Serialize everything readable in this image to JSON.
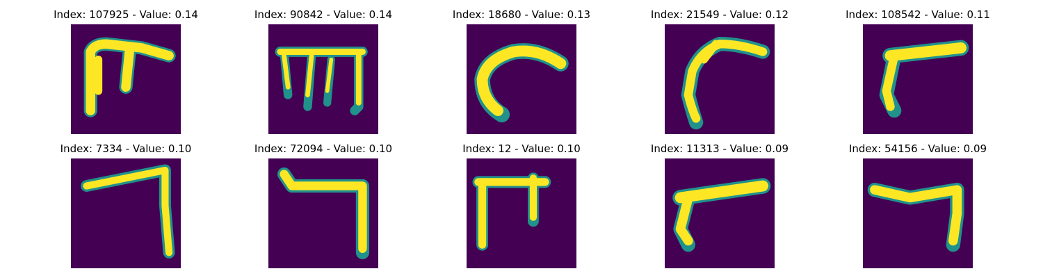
{
  "chart_data": {
    "type": "image-grid",
    "colormap": "viridis",
    "background_color": "#440154",
    "foreground_color": "#fde725",
    "edge_color": "#21918c",
    "items": [
      {
        "index": 107925,
        "value": 0.14,
        "title": "Index: 107925 - Value: 0.14",
        "glyph": "stroke-bracket-stem"
      },
      {
        "index": 90842,
        "value": 0.14,
        "title": "Index: 90842 - Value: 0.14",
        "glyph": "stroke-comb"
      },
      {
        "index": 18680,
        "value": 0.13,
        "title": "Index: 18680 - Value: 0.13",
        "glyph": "stroke-hook-left"
      },
      {
        "index": 21549,
        "value": 0.12,
        "title": "Index: 21549 - Value: 0.12",
        "glyph": "stroke-diagonal-hook"
      },
      {
        "index": 108542,
        "value": 0.11,
        "title": "Index: 108542 - Value: 0.11",
        "glyph": "stroke-bar-left-leg"
      },
      {
        "index": 7334,
        "value": 0.1,
        "title": "Index: 7334 - Value: 0.10",
        "glyph": "stroke-corner-right"
      },
      {
        "index": 72094,
        "value": 0.1,
        "title": "Index: 72094 - Value: 0.10",
        "glyph": "stroke-corner-right-2"
      },
      {
        "index": 12,
        "value": 0.1,
        "title": "Index: 12 - Value: 0.10",
        "glyph": "stroke-bracket-stem-2"
      },
      {
        "index": 11313,
        "value": 0.09,
        "title": "Index: 11313 - Value: 0.09",
        "glyph": "stroke-slant-left-leg"
      },
      {
        "index": 54156,
        "value": 0.09,
        "title": "Index: 54156 - Value: 0.09",
        "glyph": "stroke-bar-right-leg"
      }
    ]
  }
}
